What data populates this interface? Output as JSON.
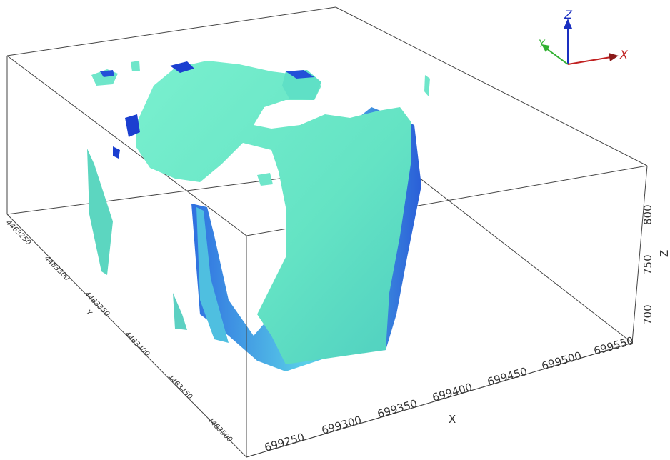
{
  "axes": {
    "x": {
      "label": "X",
      "ticks": [
        699250,
        699300,
        699350,
        699400,
        699450,
        699500,
        699550
      ]
    },
    "y": {
      "label": "Y",
      "ticks": [
        4463250,
        4463300,
        4463350,
        4463400,
        4463450,
        4463500
      ]
    },
    "z": {
      "label": "Z",
      "ticks": [
        700,
        750,
        800
      ]
    }
  },
  "orientation": {
    "x": "X",
    "y": "Y",
    "z": "Z"
  }
}
